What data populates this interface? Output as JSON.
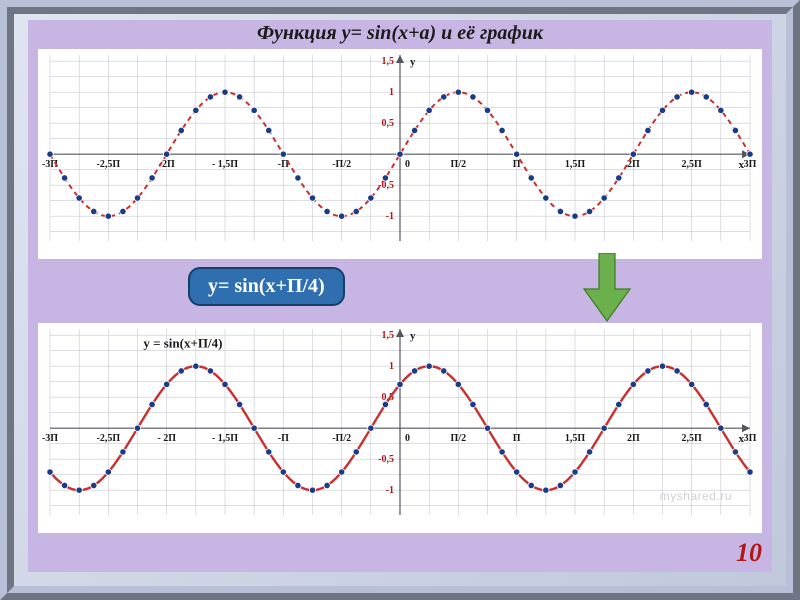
{
  "page": {
    "title": "Функция y= sin(x+a) и её график",
    "title_fontsize": 20,
    "page_number": "10",
    "page_number_fontsize": 26,
    "watermark": "myshared.ru"
  },
  "formula_badge": {
    "text": "y= sin(x+П/4)",
    "bg": "#2f6fb0",
    "border": "#173f66",
    "color": "#ffffff",
    "fontsize": 20
  },
  "arrow": {
    "fill": "#6ab04c",
    "border": "#3d7a22"
  },
  "axis_style": {
    "tick_label_color": "#1a1a1a",
    "tick_label_fontsize": 10,
    "tick_label_weight": "bold",
    "y_tick_color": "#b01818",
    "axis_label_fontsize": 11,
    "grid_color": "#c8c8d0",
    "axis_color": "#555560"
  },
  "chart_top": {
    "type": "line",
    "phase_shift": 0,
    "x_range_pi": [
      -3,
      3
    ],
    "ylim": [
      -1.4,
      1.6
    ],
    "x_ticks": [
      "-3П",
      "-2,5П",
      "-2П",
      "- 1,5П",
      "-П",
      "-П/2",
      "0",
      "П/2",
      "П",
      "1,5П",
      "2П",
      "2,5П",
      "3П"
    ],
    "x_tick_vals_pi": [
      -3,
      -2.5,
      -2,
      -1.5,
      -1,
      -0.5,
      0,
      0.5,
      1,
      1.5,
      2,
      2.5,
      3
    ],
    "y_ticks": [
      "1,5",
      "1",
      "0,5",
      "0",
      "-0,5",
      "-1"
    ],
    "y_tick_vals": [
      1.5,
      1,
      0.5,
      0,
      -0.5,
      -1
    ],
    "curve_color": "#c83030",
    "curve_dash": "5,4",
    "curve_width": 2,
    "marker_fill": "#1a3a8a",
    "marker_stroke": "#ffffff",
    "marker_radius": 3.2,
    "marker_step_pi": 0.125,
    "background": "#ffffff",
    "inner_label": null
  },
  "chart_bottom": {
    "type": "line",
    "phase_shift_pi": 0.25,
    "x_range_pi": [
      -3,
      3
    ],
    "ylim": [
      -1.4,
      1.6
    ],
    "x_ticks": [
      "-3П",
      "-2,5П",
      "- 2П",
      "- 1,5П",
      "-П",
      "-П/2",
      "0",
      "П/2",
      "П",
      "1,5П",
      "2П",
      "2,5П",
      "3П"
    ],
    "x_tick_vals_pi": [
      -3,
      -2.5,
      -2,
      -1.5,
      -1,
      -0.5,
      0,
      0.5,
      1,
      1.5,
      2,
      2.5,
      3
    ],
    "y_ticks": [
      "1,5",
      "1",
      "0,5",
      "0",
      "-0,5",
      "-1"
    ],
    "y_tick_vals": [
      1.5,
      1,
      0.5,
      0,
      -0.5,
      -1
    ],
    "curve_color": "#c83030",
    "curve_dash": null,
    "curve_width": 2.4,
    "marker_fill": "#1a3a8a",
    "marker_stroke": "#ffffff",
    "marker_radius": 3.2,
    "marker_step_pi": 0.125,
    "background": "#ffffff",
    "inner_label": "y = sin(x+П/4)",
    "inner_label_pos_pi_x": -2.2,
    "inner_label_pos_y": 1.3,
    "inner_label_fontsize": 13
  }
}
